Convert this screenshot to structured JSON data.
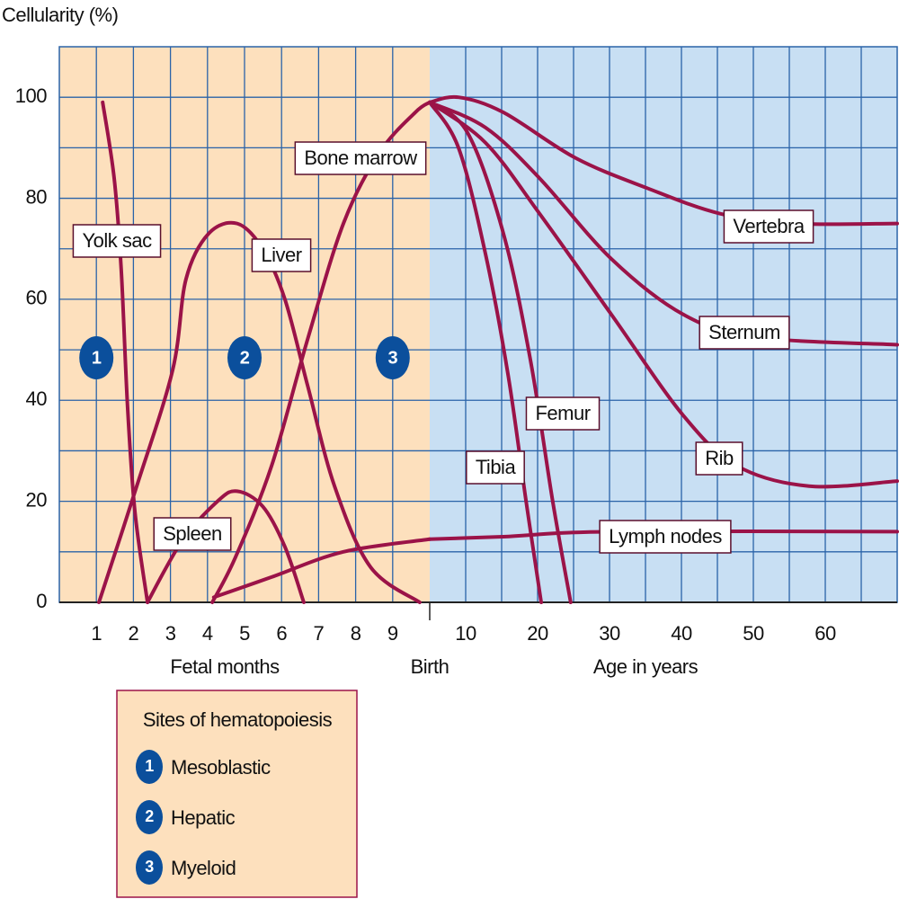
{
  "chart_data": [
    {
      "type": "line",
      "y_label": "Cellularity (%)",
      "x_label": "Fetal months",
      "xlim": [
        0,
        10
      ],
      "xticks": [
        1,
        2,
        3,
        4,
        5,
        6,
        7,
        8,
        9
      ],
      "ylim": [
        0,
        110
      ],
      "yticks": [
        0,
        20,
        40,
        60,
        80,
        100
      ],
      "yminor": [
        10,
        30,
        50,
        70,
        90
      ],
      "background": "#fde0bd",
      "grid_color": "#2a63a8",
      "color": "#9b1348",
      "series": [
        {
          "name": "Yolk sac",
          "x": [
            1.17,
            1.48,
            1.67,
            1.84,
            2.04,
            2.38
          ],
          "values": [
            99,
            84,
            66,
            39,
            18,
            0
          ]
        },
        {
          "name": "Liver",
          "x": [
            1.07,
            2.09,
            3.06,
            3.42,
            4.03,
            4.8,
            5.49,
            6.09,
            6.7,
            7.43,
            8.4,
            9.73
          ],
          "values": [
            0,
            23,
            46,
            64,
            73,
            75,
            70,
            60,
            43,
            23,
            7,
            0
          ]
        },
        {
          "name": "Spleen",
          "x": [
            2.38,
            3.3,
            4.27,
            4.8,
            5.49,
            6.09,
            6.6
          ],
          "values": [
            0,
            12,
            20,
            22,
            19,
            11,
            0
          ]
        },
        {
          "name": "Bone marrow",
          "x": [
            4.13,
            4.76,
            5.73,
            6.7,
            7.67,
            8.64,
            9.61,
            10
          ],
          "values": [
            0,
            9,
            27,
            52,
            75,
            89,
            97,
            99
          ]
        },
        {
          "x": [
            4.17,
            5.73,
            7.67,
            10
          ],
          "values": [
            1,
            5,
            10,
            12.5
          ]
        }
      ]
    },
    {
      "type": "line",
      "x_label": "Age in years",
      "start_label": "Birth",
      "xlim": [
        5,
        70
      ],
      "xticks": [
        10,
        20,
        30,
        40,
        50,
        60
      ],
      "xminor": [
        15,
        25,
        35,
        45,
        55,
        65
      ],
      "ylim": [
        0,
        110
      ],
      "yminor": [
        10,
        20,
        30,
        40,
        50,
        60,
        70,
        80,
        90,
        100
      ],
      "background": "#c8dff3",
      "grid_color": "#2a63a8",
      "color": "#9b1348",
      "series": [
        {
          "name": "Vertebra",
          "x": [
            5,
            9,
            15.25,
            25.25,
            35.25,
            45.25,
            55.25,
            70
          ],
          "values": [
            99,
            100,
            97,
            88,
            82,
            77,
            75,
            75
          ]
        },
        {
          "name": "Sternum",
          "x": [
            5,
            12.75,
            20.25,
            30.25,
            40.25,
            50.25,
            70
          ],
          "values": [
            99,
            94,
            84,
            68,
            57,
            52.5,
            51
          ]
        },
        {
          "name": "Rib",
          "x": [
            5,
            12.75,
            20.25,
            30.25,
            40.25,
            47.75,
            57.75,
            70
          ],
          "values": [
            99,
            91,
            77,
            57,
            37,
            27,
            23,
            24
          ]
        },
        {
          "name": "Femur",
          "x": [
            5,
            10.25,
            15.25,
            19,
            22.1,
            24.6
          ],
          "values": [
            99,
            93,
            73,
            48,
            20,
            0
          ]
        },
        {
          "name": "Tibia",
          "x": [
            5,
            9,
            12.75,
            15.9,
            18.4,
            20.5
          ],
          "values": [
            99,
            90,
            69,
            45,
            20,
            0
          ]
        },
        {
          "name": "Lymph nodes",
          "x": [
            5,
            15.25,
            30.25,
            70
          ],
          "values": [
            12.5,
            13,
            14,
            14
          ]
        }
      ]
    }
  ],
  "legend": {
    "title": "Sites of hematopoiesis",
    "items": [
      {
        "number": 1,
        "label": "Mesoblastic",
        "x": 1
      },
      {
        "number": 2,
        "label": "Hepatic",
        "x": 5
      },
      {
        "number": 3,
        "label": "Myeloid",
        "x": 9
      }
    ],
    "color": "#0b4f9c"
  }
}
